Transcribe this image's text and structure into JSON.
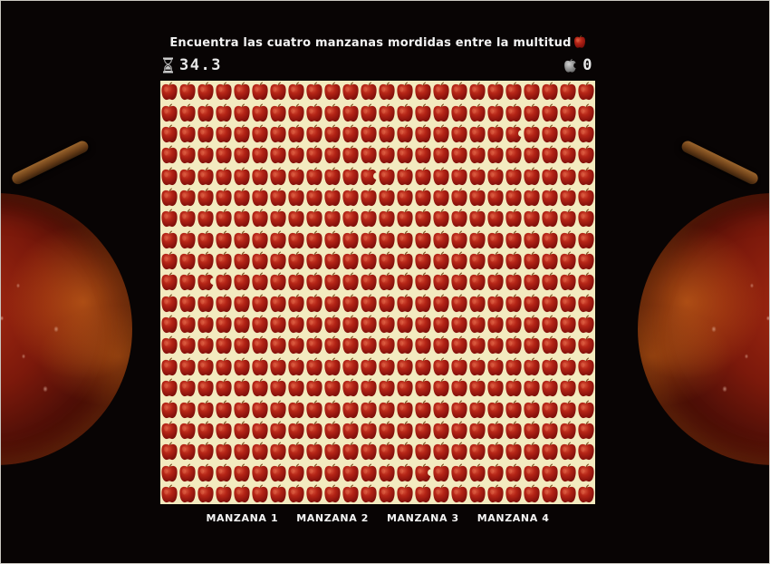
{
  "title": {
    "text": "Encuentra las cuatro manzanas mordidas entre la multitud",
    "icon": "red-apple-emoji"
  },
  "hud": {
    "timer": {
      "icon": "hourglass-icon",
      "value": "34.3"
    },
    "found_counter": {
      "icon": "gray-bitten-apple-icon",
      "value": "0"
    }
  },
  "board": {
    "columns": 24,
    "rows": 20,
    "background": "#f3eabf",
    "apple": "red-apple",
    "bitten_apple": "red-apple-with-bite",
    "bitten_positions": [
      {
        "row": 2,
        "col": 19
      },
      {
        "row": 4,
        "col": 11
      },
      {
        "row": 9,
        "col": 2
      },
      {
        "row": 18,
        "col": 14
      }
    ]
  },
  "footer": {
    "labels": [
      "MANZANA 1",
      "MANZANA 2",
      "MANZANA 3",
      "MANZANA 4"
    ]
  },
  "colors": {
    "background": "#080404",
    "board_cream": "#f3eabf",
    "apple_gradient": [
      "#d8543a",
      "#b42416",
      "#8c130d",
      "#700c08"
    ],
    "stem_brown": "#7c4d20",
    "text_white": "#f4f4f4"
  }
}
